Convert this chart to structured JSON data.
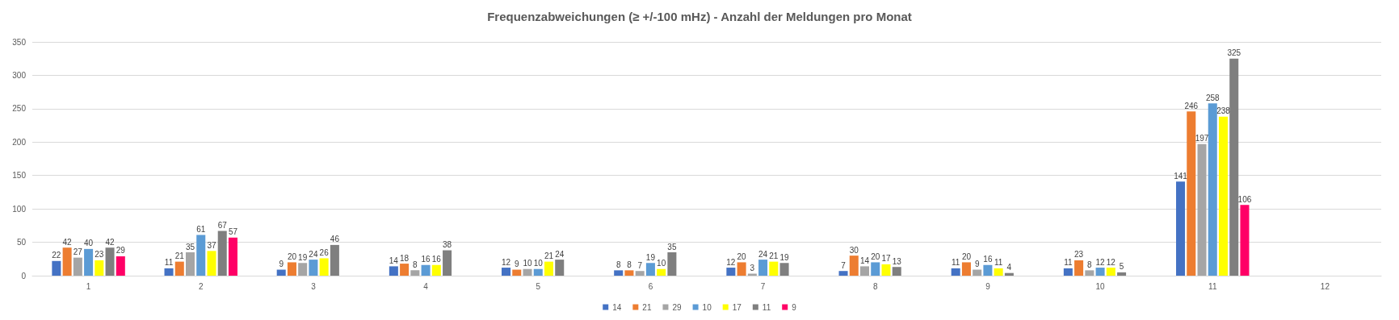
{
  "chart_data": {
    "type": "bar",
    "title": "Frequenzabweichungen (≥ +/-100 mHz) - Anzahl der Meldungen pro Monat",
    "categories": [
      "1",
      "2",
      "3",
      "4",
      "5",
      "6",
      "7",
      "8",
      "9",
      "10",
      "11",
      "12"
    ],
    "series": [
      {
        "name": "14",
        "color": "#4472c4",
        "values": [
          22,
          11,
          9,
          14,
          12,
          8,
          12,
          7,
          11,
          11,
          141,
          null
        ]
      },
      {
        "name": "21",
        "color": "#ed7d31",
        "values": [
          42,
          21,
          20,
          18,
          9,
          8,
          20,
          30,
          20,
          23,
          246,
          null
        ]
      },
      {
        "name": "29",
        "color": "#a5a5a5",
        "values": [
          27,
          35,
          19,
          8,
          10,
          7,
          3,
          14,
          9,
          8,
          197,
          null
        ]
      },
      {
        "name": "10",
        "color": "#5b9bd5",
        "values": [
          40,
          61,
          24,
          16,
          10,
          19,
          24,
          20,
          16,
          12,
          258,
          null
        ]
      },
      {
        "name": "17",
        "color": "#ffff00",
        "values": [
          23,
          37,
          26,
          16,
          21,
          10,
          21,
          17,
          11,
          12,
          238,
          null
        ]
      },
      {
        "name": "11",
        "color": "#7f7f7f",
        "values": [
          42,
          67,
          46,
          38,
          24,
          35,
          19,
          13,
          4,
          5,
          325,
          null
        ]
      },
      {
        "name": "9",
        "color": "#ff0066",
        "values": [
          29,
          57,
          null,
          null,
          null,
          null,
          null,
          null,
          null,
          null,
          106,
          null
        ]
      }
    ],
    "ylim": [
      0,
      350
    ],
    "yticks": [
      0,
      50,
      100,
      150,
      200,
      250,
      300,
      350
    ],
    "grid": "y",
    "legend": "bottom",
    "data_labels": true
  }
}
